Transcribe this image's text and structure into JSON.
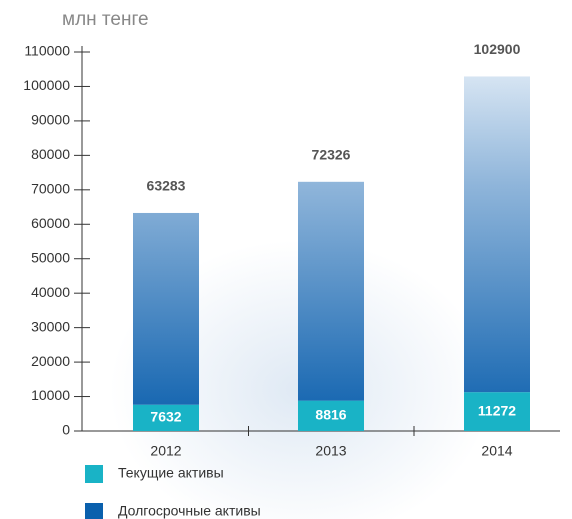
{
  "chart_data": {
    "type": "stacked_bar",
    "y_label": "млн тенге",
    "categories": [
      "2012",
      "2013",
      "2014"
    ],
    "series": [
      {
        "name": "Текущие активы",
        "color": "#19b3c6",
        "values": [
          7632,
          8816,
          11272
        ]
      },
      {
        "name": "Долгосрочные активы",
        "color": "#0a60ad",
        "values": [
          55651,
          63510,
          91628
        ]
      }
    ],
    "totals": [
      63283,
      72326,
      102900
    ],
    "ylim": [
      0,
      110000
    ],
    "yticks": [
      0,
      10000,
      20000,
      30000,
      40000,
      50000,
      60000,
      70000,
      80000,
      90000,
      100000,
      110000
    ]
  }
}
